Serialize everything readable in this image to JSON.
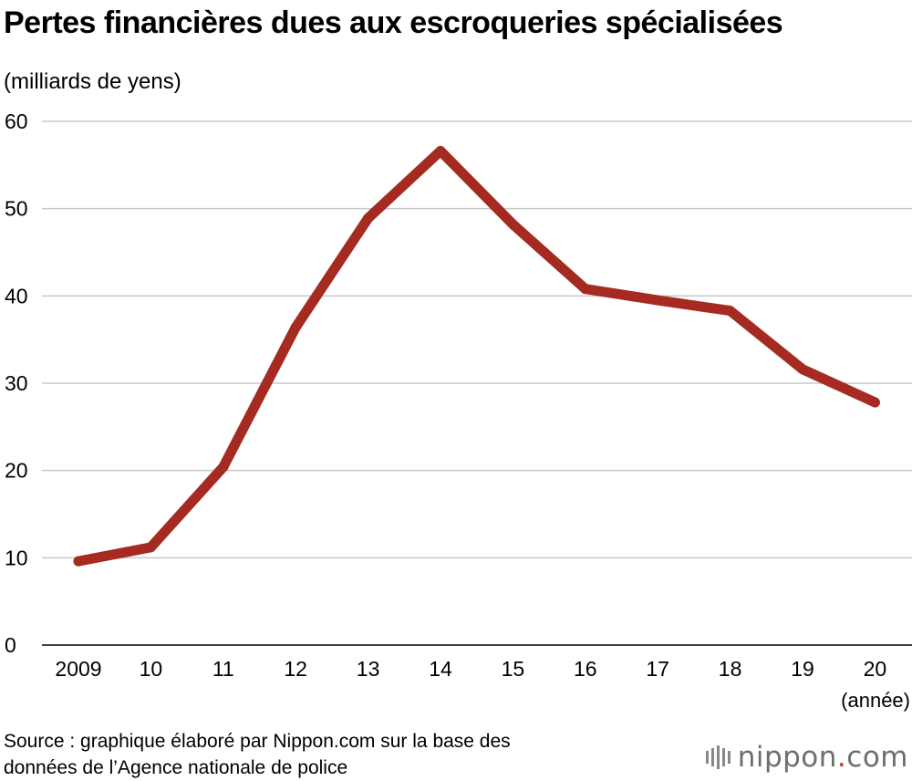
{
  "chart_data": {
    "type": "line",
    "title": "Pertes financières dues aux escroqueries spécialisées",
    "ylabel": "(milliards de yens)",
    "xlabel": "(année)",
    "categories": [
      "2009",
      "10",
      "11",
      "12",
      "13",
      "14",
      "15",
      "16",
      "17",
      "18",
      "19",
      "20"
    ],
    "series": [
      {
        "values": [
          9.6,
          11.2,
          20.4,
          36.4,
          48.9,
          56.6,
          48.2,
          40.8,
          39.5,
          38.3,
          31.6,
          27.8
        ]
      }
    ],
    "ylim": [
      0,
      60
    ],
    "yticks": [
      0,
      10,
      20,
      30,
      40,
      50,
      60
    ],
    "grid": true,
    "color": "#a52a21"
  },
  "footer": {
    "source_line1": "Source : graphique élaboré par Nippon.com sur la base des",
    "source_line2": "données de l’Agence nationale de police",
    "logo_text": "nippon",
    "logo_dot": ".",
    "logo_tld": "com"
  }
}
